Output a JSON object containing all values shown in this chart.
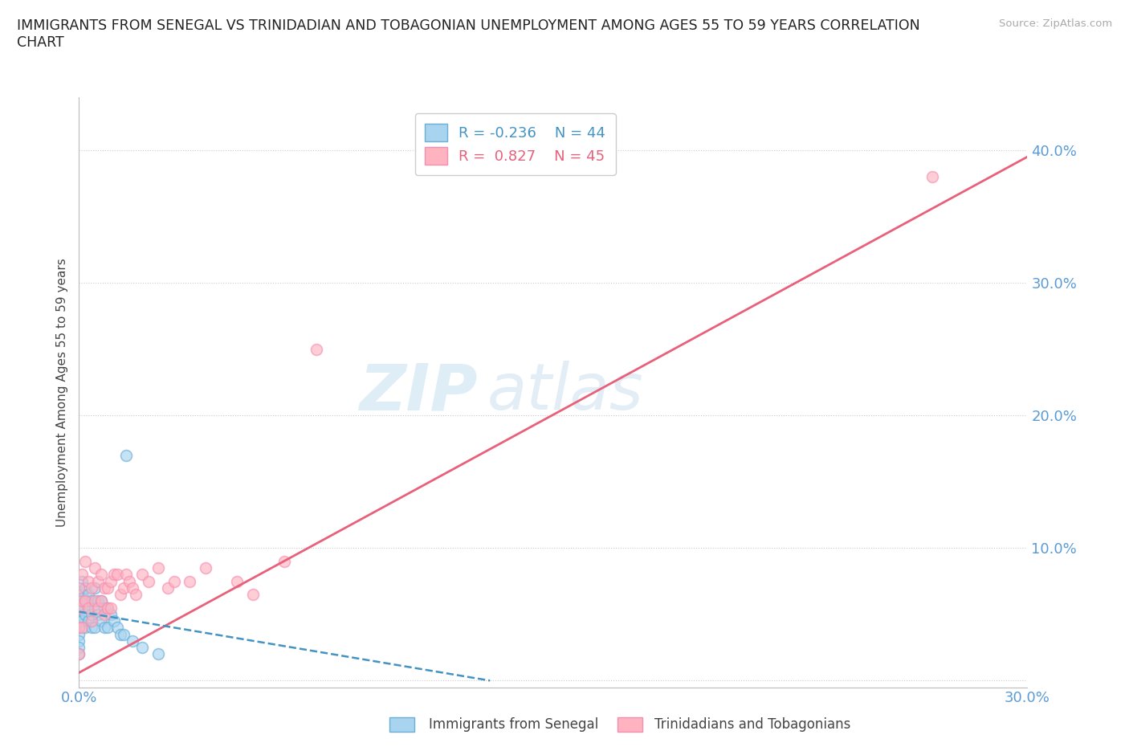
{
  "title": "IMMIGRANTS FROM SENEGAL VS TRINIDADIAN AND TOBAGONIAN UNEMPLOYMENT AMONG AGES 55 TO 59 YEARS CORRELATION\nCHART",
  "source_text": "Source: ZipAtlas.com",
  "ylabel": "Unemployment Among Ages 55 to 59 years",
  "xlim": [
    0.0,
    0.3
  ],
  "ylim": [
    -0.005,
    0.44
  ],
  "xticks": [
    0.0,
    0.05,
    0.1,
    0.15,
    0.2,
    0.25,
    0.3
  ],
  "xticklabels": [
    "0.0%",
    "",
    "",
    "",
    "",
    "",
    "30.0%"
  ],
  "yticks": [
    0.0,
    0.1,
    0.2,
    0.3,
    0.4
  ],
  "yticklabels": [
    "",
    "10.0%",
    "20.0%",
    "30.0%",
    "40.0%"
  ],
  "color_senegal_face": "#a8d4f0",
  "color_senegal_edge": "#6baed6",
  "color_trinidadian_face": "#ffb3c1",
  "color_trinidadian_edge": "#f48fb1",
  "color_trend_senegal": "#4393c3",
  "color_trend_trinidadian": "#e8607a",
  "watermark_zip": "ZIP",
  "watermark_atlas": "atlas",
  "tick_color": "#5b9bd5",
  "background_color": "#ffffff",
  "grid_color": "#cccccc",
  "axis_color": "#bbbbbb",
  "senegal_x": [
    0.0,
    0.0,
    0.0,
    0.0,
    0.0,
    0.0,
    0.0,
    0.0,
    0.0,
    0.0,
    0.001,
    0.001,
    0.001,
    0.001,
    0.002,
    0.002,
    0.002,
    0.002,
    0.003,
    0.003,
    0.003,
    0.004,
    0.004,
    0.004,
    0.005,
    0.005,
    0.005,
    0.006,
    0.006,
    0.007,
    0.007,
    0.008,
    0.008,
    0.009,
    0.009,
    0.01,
    0.011,
    0.012,
    0.013,
    0.014,
    0.015,
    0.017,
    0.02,
    0.025
  ],
  "senegal_y": [
    0.065,
    0.06,
    0.055,
    0.05,
    0.045,
    0.04,
    0.035,
    0.03,
    0.025,
    0.02,
    0.075,
    0.065,
    0.055,
    0.045,
    0.07,
    0.06,
    0.05,
    0.04,
    0.065,
    0.055,
    0.045,
    0.06,
    0.05,
    0.04,
    0.07,
    0.055,
    0.04,
    0.06,
    0.05,
    0.06,
    0.045,
    0.055,
    0.04,
    0.055,
    0.04,
    0.05,
    0.045,
    0.04,
    0.035,
    0.035,
    0.17,
    0.03,
    0.025,
    0.02
  ],
  "trinidadian_x": [
    0.0,
    0.0,
    0.0,
    0.0,
    0.001,
    0.001,
    0.001,
    0.002,
    0.002,
    0.003,
    0.003,
    0.004,
    0.004,
    0.005,
    0.005,
    0.006,
    0.006,
    0.007,
    0.007,
    0.008,
    0.008,
    0.009,
    0.009,
    0.01,
    0.01,
    0.011,
    0.012,
    0.013,
    0.014,
    0.015,
    0.016,
    0.017,
    0.018,
    0.02,
    0.022,
    0.025,
    0.028,
    0.03,
    0.035,
    0.04,
    0.05,
    0.055,
    0.065,
    0.075,
    0.27
  ],
  "trinidadian_y": [
    0.07,
    0.055,
    0.04,
    0.02,
    0.08,
    0.06,
    0.04,
    0.09,
    0.06,
    0.075,
    0.055,
    0.07,
    0.045,
    0.085,
    0.06,
    0.075,
    0.055,
    0.08,
    0.06,
    0.07,
    0.05,
    0.07,
    0.055,
    0.075,
    0.055,
    0.08,
    0.08,
    0.065,
    0.07,
    0.08,
    0.075,
    0.07,
    0.065,
    0.08,
    0.075,
    0.085,
    0.07,
    0.075,
    0.075,
    0.085,
    0.075,
    0.065,
    0.09,
    0.25,
    0.38
  ],
  "trend_pink_x0": 0.0,
  "trend_pink_y0": 0.006,
  "trend_pink_x1": 0.3,
  "trend_pink_y1": 0.395,
  "trend_blue_x0": 0.0,
  "trend_blue_y0": 0.052,
  "trend_blue_x1": 0.13,
  "trend_blue_y1": 0.0,
  "marker_size": 100,
  "marker_alpha": 0.65,
  "marker_linewidth": 1.2
}
